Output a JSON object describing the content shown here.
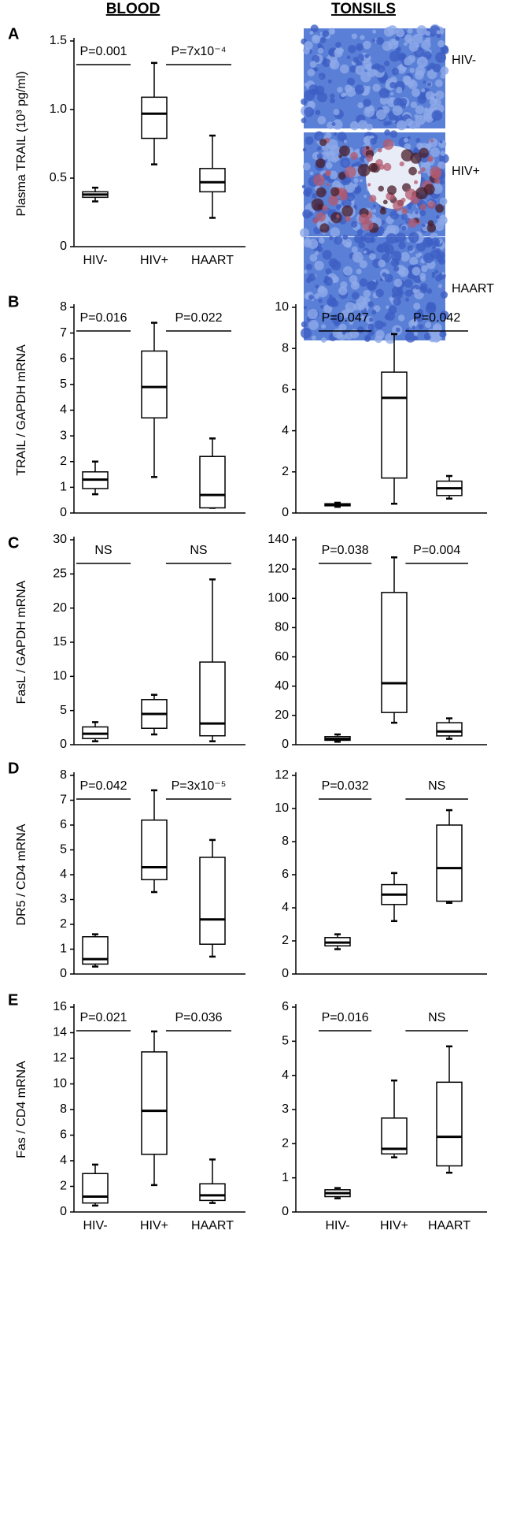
{
  "headers": {
    "blood": "BLOOD",
    "tonsils": "TONSILS"
  },
  "panel_labels": [
    "A",
    "B",
    "C",
    "D",
    "E"
  ],
  "tonsil_images": {
    "labels": [
      "HIV-",
      "HIV+",
      "HAART"
    ]
  },
  "chart_data": [
    {
      "type": "box",
      "ylabel": "Plasma TRAIL (10³ pg/ml)",
      "categories": [
        "HIV-",
        "HIV+",
        "HAART"
      ],
      "ylim": [
        0,
        1.5
      ],
      "yticks": [
        0,
        0.5,
        {
          "value": 1,
          "label": "1.0"
        },
        1.5
      ],
      "boxes": [
        {
          "min": 0.33,
          "q1": 0.36,
          "median": 0.38,
          "q3": 0.4,
          "max": 0.43
        },
        {
          "min": 0.6,
          "q1": 0.79,
          "median": 0.97,
          "q3": 1.09,
          "max": 1.34
        },
        {
          "min": 0.21,
          "q1": 0.4,
          "median": 0.47,
          "q3": 0.57,
          "max": 0.81
        }
      ],
      "annotations": [
        "P=0.001",
        "P=7x10⁻⁴"
      ]
    },
    {
      "type": "box",
      "ylabel": "TRAIL / GAPDH mRNA",
      "categories": [
        null,
        null,
        null
      ],
      "ylim": [
        0,
        8
      ],
      "yticks": [
        0,
        1,
        2,
        3,
        4,
        5,
        6,
        7,
        8
      ],
      "boxes": [
        {
          "min": 0.73,
          "q1": 0.95,
          "median": 1.3,
          "q3": 1.6,
          "max": 2.0
        },
        {
          "min": 1.4,
          "q1": 3.7,
          "median": 4.9,
          "q3": 6.3,
          "max": 7.4
        },
        {
          "min": 0.2,
          "q1": 0.2,
          "median": 0.7,
          "q3": 2.2,
          "max": 2.9
        }
      ],
      "annotations": [
        "P=0.016",
        "P=0.022"
      ]
    },
    {
      "type": "box",
      "categories": [
        null,
        null,
        null
      ],
      "ylim": [
        0,
        10
      ],
      "yticks": [
        0,
        2,
        4,
        6,
        8,
        10
      ],
      "boxes": [
        {
          "min": 0.3,
          "q1": 0.35,
          "median": 0.4,
          "q3": 0.45,
          "max": 0.5
        },
        {
          "min": 0.45,
          "q1": 1.7,
          "median": 5.6,
          "q3": 6.85,
          "max": 8.7
        },
        {
          "min": 0.7,
          "q1": 0.85,
          "median": 1.2,
          "q3": 1.55,
          "max": 1.8
        }
      ],
      "annotations": [
        "P=0.047",
        "P=0.042"
      ]
    },
    {
      "type": "box",
      "ylabel": "FasL / GAPDH mRNA",
      "categories": [
        null,
        null,
        null
      ],
      "ylim": [
        0,
        30
      ],
      "yticks": [
        0,
        5,
        10,
        15,
        20,
        25,
        30
      ],
      "boxes": [
        {
          "min": 0.5,
          "q1": 0.9,
          "median": 1.6,
          "q3": 2.6,
          "max": 3.3
        },
        {
          "min": 1.5,
          "q1": 2.4,
          "median": 4.5,
          "q3": 6.6,
          "max": 7.3
        },
        {
          "min": 0.5,
          "q1": 1.3,
          "median": 3.1,
          "q3": 12.1,
          "max": 24.2
        }
      ],
      "annotations": [
        "NS",
        "NS"
      ]
    },
    {
      "type": "box",
      "categories": [
        null,
        null,
        null
      ],
      "ylim": [
        0,
        140
      ],
      "yticks": [
        0,
        20,
        40,
        60,
        80,
        100,
        120,
        140
      ],
      "boxes": [
        {
          "min": 2,
          "q1": 3,
          "median": 4,
          "q3": 5.5,
          "max": 7
        },
        {
          "min": 15,
          "q1": 22,
          "median": 42,
          "q3": 104,
          "max": 128
        },
        {
          "min": 4,
          "q1": 6,
          "median": 9,
          "q3": 15,
          "max": 18
        }
      ],
      "annotations": [
        "P=0.038",
        "P=0.004"
      ]
    },
    {
      "type": "box",
      "ylabel": "DR5 / CD4 mRNA",
      "categories": [
        null,
        null,
        null
      ],
      "ylim": [
        0,
        8
      ],
      "yticks": [
        0,
        1,
        2,
        3,
        4,
        5,
        6,
        7,
        8
      ],
      "boxes": [
        {
          "min": 0.3,
          "q1": 0.4,
          "median": 0.6,
          "q3": 1.5,
          "max": 1.6
        },
        {
          "min": 3.3,
          "q1": 3.8,
          "median": 4.3,
          "q3": 6.2,
          "max": 7.4
        },
        {
          "min": 0.7,
          "q1": 1.2,
          "median": 2.2,
          "q3": 4.7,
          "max": 5.4
        }
      ],
      "annotations": [
        "P=0.042",
        "P=3x10⁻⁵"
      ]
    },
    {
      "type": "box",
      "categories": [
        null,
        null,
        null
      ],
      "ylim": [
        0,
        12
      ],
      "yticks": [
        0,
        2,
        4,
        6,
        8,
        10,
        12
      ],
      "boxes": [
        {
          "min": 1.5,
          "q1": 1.7,
          "median": 1.9,
          "q3": 2.2,
          "max": 2.4
        },
        {
          "min": 3.2,
          "q1": 4.2,
          "median": 4.8,
          "q3": 5.4,
          "max": 6.1
        },
        {
          "min": 4.3,
          "q1": 4.4,
          "median": 6.4,
          "q3": 9.0,
          "max": 9.9
        }
      ],
      "annotations": [
        "P=0.032",
        "NS"
      ]
    },
    {
      "type": "box",
      "ylabel": "Fas / CD4 mRNA",
      "categories": [
        "HIV-",
        "HIV+",
        "HAART"
      ],
      "ylim": [
        0,
        16
      ],
      "yticks": [
        0,
        2,
        4,
        6,
        8,
        10,
        12,
        14,
        16
      ],
      "boxes": [
        {
          "min": 0.5,
          "q1": 0.7,
          "median": 1.2,
          "q3": 3.0,
          "max": 3.7
        },
        {
          "min": 2.1,
          "q1": 4.5,
          "median": 7.9,
          "q3": 12.5,
          "max": 14.1
        },
        {
          "min": 0.7,
          "q1": 0.9,
          "median": 1.3,
          "q3": 2.2,
          "max": 4.1
        }
      ],
      "annotations": [
        "P=0.021",
        "P=0.036"
      ]
    },
    {
      "type": "box",
      "categories": [
        "HIV-",
        "HIV+",
        "HAART"
      ],
      "ylim": [
        0,
        6
      ],
      "yticks": [
        0,
        1,
        2,
        3,
        4,
        5,
        6
      ],
      "boxes": [
        {
          "min": 0.4,
          "q1": 0.45,
          "median": 0.55,
          "q3": 0.65,
          "max": 0.7
        },
        {
          "min": 1.6,
          "q1": 1.7,
          "median": 1.85,
          "q3": 2.75,
          "max": 3.85
        },
        {
          "min": 1.15,
          "q1": 1.35,
          "median": 2.2,
          "q3": 3.8,
          "max": 4.85
        }
      ],
      "annotations": [
        "P=0.016",
        "NS"
      ]
    }
  ]
}
